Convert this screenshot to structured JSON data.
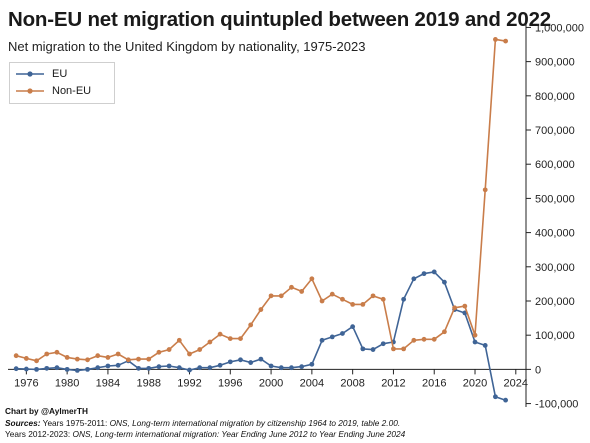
{
  "chart_data": {
    "type": "line",
    "title": "Non-EU net migration quintupled between 2019 and 2022",
    "subtitle": "Net migration to the United Kingdom by nationality, 1975-2023",
    "x_ticks": [
      1976,
      1980,
      1984,
      1988,
      1992,
      1996,
      2000,
      2004,
      2008,
      2012,
      2016,
      2020,
      2024
    ],
    "y_ticks": [
      -100000,
      0,
      100000,
      200000,
      300000,
      400000,
      500000,
      600000,
      700000,
      800000,
      900000,
      1000000
    ],
    "y_tick_labels": [
      "-100,000",
      "0",
      "100,000",
      "200,000",
      "300,000",
      "400,000",
      "500,000",
      "600,000",
      "700,000",
      "800,000",
      "900,000",
      "1,000,000"
    ],
    "xlim": [
      1974.2,
      2025
    ],
    "ylim": [
      -110000,
      1010000
    ],
    "legend_position": "top-left",
    "grid": false,
    "series": [
      {
        "name": "EU",
        "color": "#3f6496",
        "x": [
          1975,
          1976,
          1977,
          1978,
          1979,
          1980,
          1981,
          1982,
          1983,
          1984,
          1985,
          1986,
          1987,
          1988,
          1989,
          1990,
          1991,
          1992,
          1993,
          1994,
          1995,
          1996,
          1997,
          1998,
          1999,
          2000,
          2001,
          2002,
          2003,
          2004,
          2005,
          2006,
          2007,
          2008,
          2009,
          2010,
          2011,
          2012,
          2013,
          2014,
          2015,
          2016,
          2017,
          2018,
          2019,
          2020,
          2021,
          2022,
          2023
        ],
        "values": [
          2000,
          1000,
          0,
          3000,
          5000,
          0,
          -3000,
          0,
          5000,
          10000,
          12000,
          25000,
          3000,
          3000,
          8000,
          10000,
          5000,
          -2000,
          5000,
          5000,
          12000,
          22000,
          28000,
          20000,
          30000,
          10000,
          5000,
          5000,
          8000,
          15000,
          85000,
          95000,
          105000,
          125000,
          60000,
          58000,
          75000,
          80000,
          205000,
          265000,
          280000,
          285000,
          255000,
          175000,
          165000,
          80000,
          70000,
          -80000,
          -90000
        ]
      },
      {
        "name": "Non-EU",
        "color": "#c97d4a",
        "x": [
          1975,
          1976,
          1977,
          1978,
          1979,
          1980,
          1981,
          1982,
          1983,
          1984,
          1985,
          1986,
          1987,
          1988,
          1989,
          1990,
          1991,
          1992,
          1993,
          1994,
          1995,
          1996,
          1997,
          1998,
          1999,
          2000,
          2001,
          2002,
          2003,
          2004,
          2005,
          2006,
          2007,
          2008,
          2009,
          2010,
          2011,
          2012,
          2013,
          2014,
          2015,
          2016,
          2017,
          2018,
          2019,
          2020,
          2021,
          2022,
          2023
        ],
        "values": [
          40000,
          32000,
          25000,
          45000,
          50000,
          35000,
          30000,
          28000,
          40000,
          35000,
          45000,
          28000,
          30000,
          30000,
          50000,
          58000,
          85000,
          45000,
          58000,
          80000,
          103000,
          90000,
          90000,
          130000,
          175000,
          215000,
          215000,
          240000,
          228000,
          265000,
          200000,
          220000,
          205000,
          190000,
          190000,
          215000,
          205000,
          60000,
          60000,
          85000,
          88000,
          88000,
          110000,
          180000,
          185000,
          100000,
          525000,
          965000,
          960000
        ]
      }
    ],
    "footer": {
      "credit": "Chart by @AylmerTH",
      "sources_label": "Sources:",
      "source_line1_prefix": "Years 1975-2011: ",
      "source_line1_italic": "ONS, Long-term international migration by citizenship 1964 to 2019, table 2.00.",
      "source_line2_prefix": "Years 2012-2023: ",
      "source_line2_italic": "ONS, Long-term international migration: Year Ending June 2012 to Year Ending June 2024"
    }
  }
}
